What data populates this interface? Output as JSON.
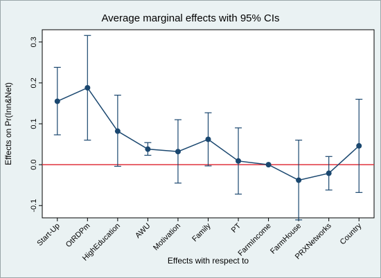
{
  "chart_data": {
    "type": "line",
    "title": "Average marginal effects with 95% CIs",
    "xlabel": "Effects with respect to",
    "ylabel": "Effects on Pr(Inn&Net)",
    "categories": [
      "Start-Up",
      "OtRDPm",
      "HighEducation",
      "AWU",
      "Motivation",
      "Family",
      "PT",
      "FarmIncome",
      "FarmHouse",
      "PRXNetworks",
      "Country"
    ],
    "values": [
      0.155,
      0.188,
      0.082,
      0.038,
      0.032,
      0.062,
      0.009,
      0.0,
      -0.038,
      -0.021,
      0.046
    ],
    "ci_lower": [
      0.073,
      0.06,
      -0.004,
      0.023,
      -0.045,
      -0.003,
      -0.072,
      0.0,
      -0.135,
      -0.062,
      -0.068
    ],
    "ci_upper": [
      0.238,
      0.316,
      0.17,
      0.054,
      0.11,
      0.127,
      0.09,
      0.0,
      0.06,
      0.02,
      0.16
    ],
    "ylim": [
      -0.13,
      0.33
    ],
    "yticks": [
      -0.1,
      0,
      0.1,
      0.2,
      0.3
    ],
    "ytick_labels": [
      "-0.1",
      "0.0",
      "0.1",
      "0.2",
      "0.3"
    ],
    "reference_line": {
      "y": 0,
      "color": "#e0323c"
    },
    "colors": {
      "series": "#1a476f",
      "plot_bg": "#ffffff",
      "outer_bg": "#eaf2f3"
    },
    "grid": false,
    "legend": "none"
  }
}
